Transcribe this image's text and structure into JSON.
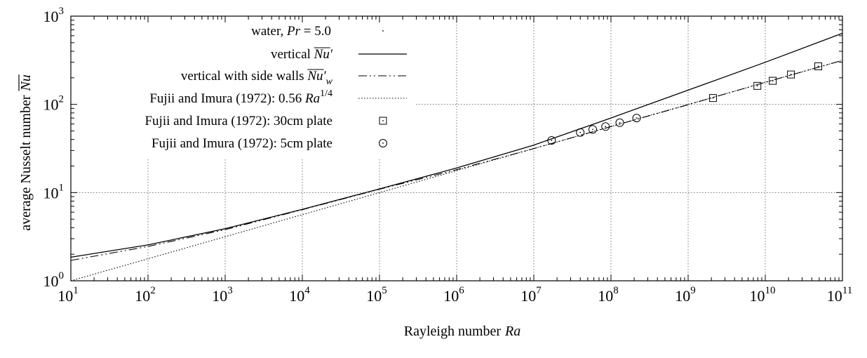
{
  "chart_data": {
    "type": "line",
    "xscale": "log",
    "yscale": "log",
    "xlim": [
      10,
      100000000000
    ],
    "ylim": [
      1,
      1000
    ],
    "grid": true,
    "legend_position": "top-left",
    "xlabel": {
      "text": "Rayleigh number",
      "symbol": "Ra"
    },
    "ylabel": {
      "text": "average Nusselt number",
      "symbol": "Nu"
    },
    "x_ticks": [
      {
        "base": "10",
        "exp": "1"
      },
      {
        "base": "10",
        "exp": "2"
      },
      {
        "base": "10",
        "exp": "3"
      },
      {
        "base": "10",
        "exp": "4"
      },
      {
        "base": "10",
        "exp": "5"
      },
      {
        "base": "10",
        "exp": "6"
      },
      {
        "base": "10",
        "exp": "7"
      },
      {
        "base": "10",
        "exp": "8"
      },
      {
        "base": "10",
        "exp": "9"
      },
      {
        "base": "10",
        "exp": "10"
      },
      {
        "base": "10",
        "exp": "11"
      }
    ],
    "y_ticks": [
      {
        "base": "10",
        "exp": "0"
      },
      {
        "base": "10",
        "exp": "1"
      },
      {
        "base": "10",
        "exp": "2"
      },
      {
        "base": "10",
        "exp": "3"
      }
    ],
    "legend_header": {
      "pre": "water, ",
      "italic": "Pr",
      "post": " = 5.0"
    },
    "series": [
      {
        "name": "vertical Nu'",
        "style": "solid",
        "x": [
          10,
          100,
          1000,
          10000,
          100000,
          1000000,
          10000000,
          100000000,
          1000000000,
          10000000000,
          100000000000
        ],
        "y": [
          1.85,
          2.55,
          3.9,
          6.45,
          11.0,
          19.0,
          34.5,
          70.0,
          145,
          300,
          640
        ]
      },
      {
        "name": "vertical with side walls Nu'w",
        "style": "dash-dot-dot",
        "x": [
          10,
          100,
          1000,
          10000,
          100000,
          1000000,
          10000000,
          100000000,
          1000000000,
          10000000000,
          100000000000
        ],
        "y": [
          1.7,
          2.45,
          3.8,
          6.4,
          10.9,
          18.2,
          31.5,
          56.0,
          99.0,
          178,
          315
        ]
      },
      {
        "name": "Fujii and Imura (1972): 0.56 Ra^1/4",
        "style": "dotted",
        "x": [
          10,
          100000000000
        ],
        "y": [
          1.0,
          315
        ]
      },
      {
        "name": "Fujii and Imura (1972): 30cm plate",
        "style": "square-markers",
        "x": [
          2100000000,
          7900000000,
          12500000000,
          21500000000,
          48500000000
        ],
        "y": [
          118,
          162,
          185,
          218,
          270
        ]
      },
      {
        "name": "Fujii and Imura (1972): 5cm plate",
        "style": "circle-markers",
        "x": [
          17000000,
          40000000,
          58000000,
          85000000,
          130000000,
          215000000
        ],
        "y": [
          39,
          48,
          52,
          56,
          62,
          70
        ]
      }
    ],
    "legend": {
      "header": "water, Pr = 5.0",
      "items": [
        {
          "pre": "vertical ",
          "over": "Nu",
          "post": "′",
          "sub": ""
        },
        {
          "pre": "vertical with side walls ",
          "over": "Nu",
          "post": "′",
          "sub": "w"
        },
        {
          "pre": "Fujii and Imura (1972): 0.56 ",
          "italic": "Ra",
          "sup": "1/4"
        },
        {
          "pre": "Fujii and Imura (1972): 30cm plate"
        },
        {
          "pre": "Fujii and Imura (1972): 5cm plate"
        }
      ]
    }
  }
}
